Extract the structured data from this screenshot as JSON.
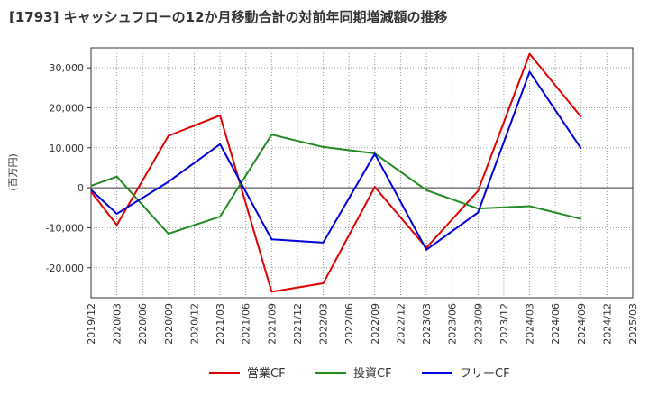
{
  "chart_data": {
    "type": "line",
    "title": "[1793]  キャッシュフローの12か月移動合計の対前年同期増減額の推移",
    "ylabel": "(百万円)",
    "xlabel": "",
    "ylim": [
      -27500,
      35000
    ],
    "yticks": [
      30000,
      20000,
      10000,
      0,
      -10000,
      -20000
    ],
    "ytick_labels": [
      "30,000",
      "20,000",
      "10,000",
      "0",
      "-10,000",
      "-20,000"
    ],
    "categories": [
      "2019/12",
      "2020/03",
      "2020/06",
      "2020/09",
      "2020/12",
      "2021/03",
      "2021/06",
      "2021/09",
      "2021/12",
      "2022/03",
      "2022/06",
      "2022/09",
      "2022/12",
      "2023/03",
      "2023/06",
      "2023/09",
      "2023/12",
      "2024/03",
      "2024/06",
      "2024/09",
      "2024/12",
      "2025/03"
    ],
    "grid": true,
    "legend_position": "bottom",
    "series": [
      {
        "name": "営業CF",
        "color": "#e00000",
        "values": [
          -1000,
          -9300,
          null,
          13000,
          null,
          18100,
          null,
          -26000,
          null,
          -23900,
          null,
          200,
          null,
          -15000,
          null,
          -800,
          null,
          33500,
          null,
          17700,
          null,
          null
        ]
      },
      {
        "name": "投資CF",
        "color": "#228b22",
        "values": [
          500,
          2800,
          null,
          -11500,
          null,
          -7200,
          null,
          13300,
          null,
          10200,
          null,
          8600,
          null,
          -600,
          null,
          -5200,
          null,
          -4600,
          null,
          -7800,
          null,
          null
        ]
      },
      {
        "name": "フリーCF",
        "color": "#0000dd",
        "values": [
          -500,
          -6500,
          null,
          1500,
          null,
          10900,
          null,
          -12900,
          null,
          -13700,
          null,
          8500,
          null,
          -15500,
          null,
          -6200,
          null,
          29000,
          null,
          9800,
          null,
          null
        ]
      }
    ]
  }
}
